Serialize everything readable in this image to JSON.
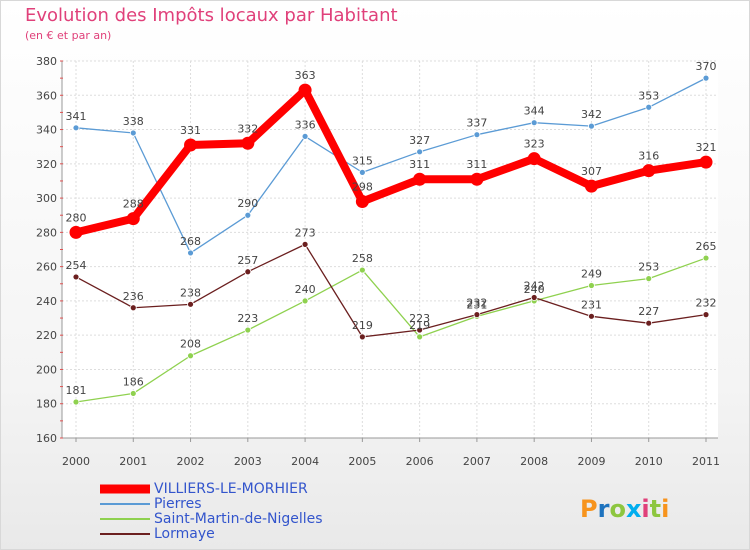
{
  "chart_data": {
    "type": "line",
    "title": "Evolution des Impôts locaux par Habitant",
    "subtitle": "(en € et par an)",
    "xlabel": "",
    "ylabel": "",
    "x": [
      "2000",
      "2001",
      "2002",
      "2003",
      "2004",
      "2005",
      "2006",
      "2007",
      "2008",
      "2009",
      "2010",
      "2011"
    ],
    "ylim": [
      160,
      380
    ],
    "yticks": [
      160,
      180,
      200,
      220,
      240,
      260,
      280,
      300,
      320,
      340,
      360,
      380
    ],
    "grid": true,
    "legend_position": "bottom-left",
    "series": [
      {
        "name": "VILLIERS-LE-MORHIER",
        "color": "#ff0000",
        "values": [
          280,
          288,
          331,
          332,
          363,
          298,
          311,
          311,
          323,
          307,
          316,
          321
        ]
      },
      {
        "name": "Pierres",
        "color": "#5b9bd5",
        "values": [
          341,
          338,
          268,
          290,
          336,
          315,
          327,
          337,
          344,
          342,
          353,
          370
        ]
      },
      {
        "name": "Saint-Martin-de-Nigelles",
        "color": "#8fd14f",
        "values": [
          181,
          186,
          208,
          223,
          240,
          258,
          219,
          231,
          240,
          249,
          253,
          265
        ]
      },
      {
        "name": "Lormaye",
        "color": "#6b1f1f",
        "values": [
          254,
          236,
          238,
          257,
          273,
          219,
          223,
          232,
          242,
          231,
          227,
          232
        ]
      }
    ]
  },
  "brand": {
    "text": "Proxiti",
    "letter_colors": [
      "#f7941d",
      "#1e73be",
      "#8dc63f",
      "#00aeef",
      "#e0407a",
      "#8dc63f",
      "#f7941d"
    ]
  }
}
